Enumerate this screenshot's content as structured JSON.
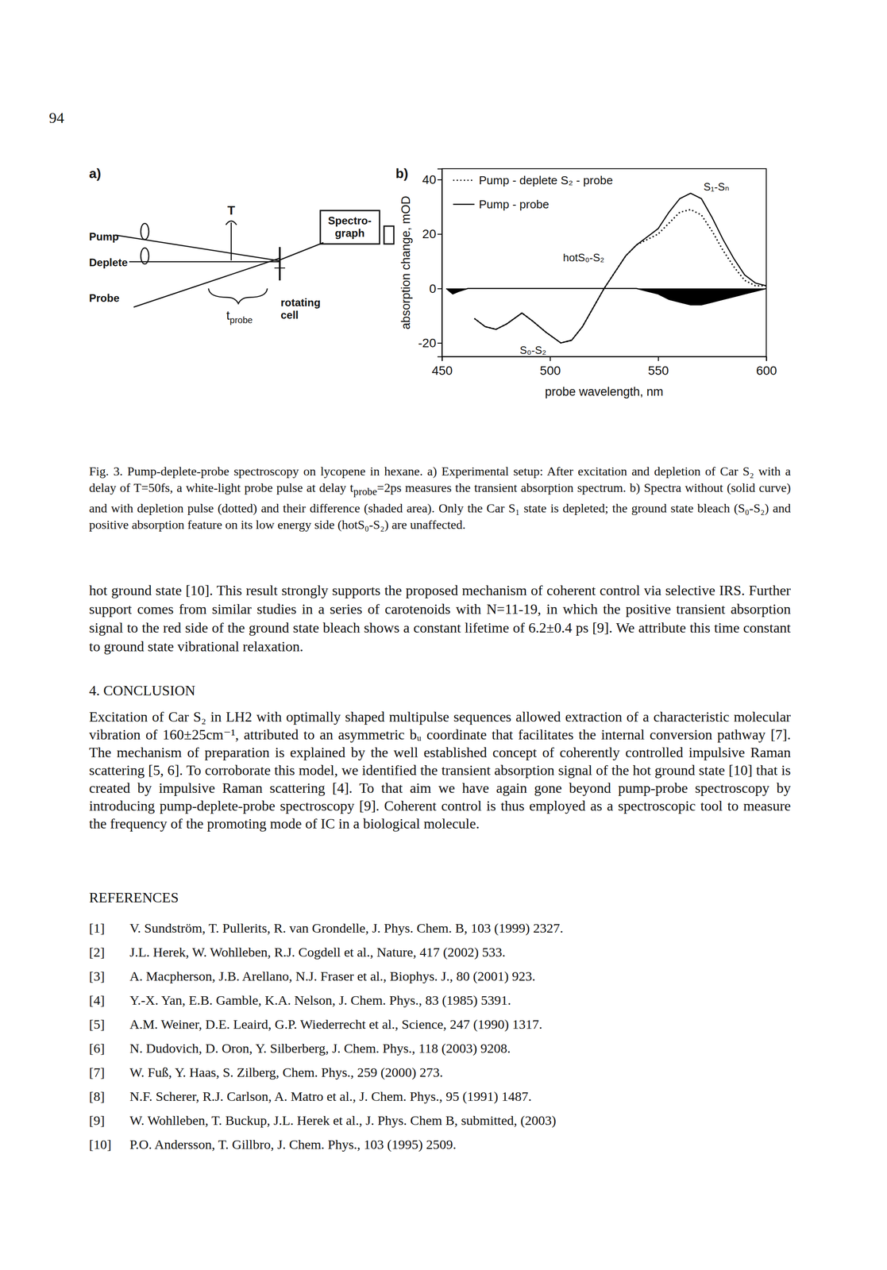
{
  "page_number": "94",
  "panel_labels": [
    "a)",
    "b)"
  ],
  "figure_a": {
    "pump": "Pump",
    "deplete": "Deplete",
    "probe": "Probe",
    "delay": "T",
    "t_probe": {
      "base": "t",
      "sub": "probe"
    },
    "cell": [
      "rotating",
      "cell"
    ],
    "spectrograph": [
      "Spectro-",
      "graph"
    ]
  },
  "chart_data": {
    "type": "line",
    "xlabel": "probe wavelength, nm",
    "ylabel": "absorption change, mOD",
    "xlim": [
      450,
      600
    ],
    "xticks": [
      450,
      500,
      550,
      600
    ],
    "ylim": [
      -25,
      44
    ],
    "yticks": [
      -20,
      0,
      20,
      40
    ],
    "legend": "upper left",
    "series": [
      {
        "name": "Pump - deplete S₂ - probe",
        "type": "line",
        "line_style": "dotted",
        "color": "#000000",
        "x": [
          465,
          470,
          475,
          480,
          487,
          492,
          498,
          505,
          510,
          515,
          520,
          525,
          530,
          535,
          540,
          545,
          550,
          555,
          560,
          565,
          570,
          575,
          580,
          585,
          590,
          595,
          600
        ],
        "values": [
          -11,
          -14,
          -15,
          -13,
          -9,
          -12,
          -16,
          -20,
          -19,
          -14,
          -7,
          0,
          6,
          12,
          16,
          18,
          20,
          24,
          28,
          29,
          27,
          21,
          14,
          8,
          3,
          1,
          1
        ]
      },
      {
        "name": "Pump - probe",
        "type": "line",
        "line_style": "solid",
        "color": "#000000",
        "x": [
          465,
          470,
          475,
          480,
          487,
          492,
          498,
          505,
          510,
          515,
          520,
          525,
          530,
          535,
          540,
          545,
          550,
          555,
          560,
          565,
          570,
          575,
          580,
          585,
          590,
          595,
          600
        ],
        "values": [
          -11,
          -14,
          -15,
          -13,
          -9,
          -12,
          -16,
          -20,
          -19,
          -14,
          -7,
          0,
          6,
          12,
          16,
          19,
          22,
          28,
          33,
          35,
          33,
          26,
          18,
          11,
          5,
          2,
          1
        ]
      },
      {
        "type": "area",
        "color": "#000000",
        "x": [
          452,
          455,
          458,
          462,
          470,
          480,
          490,
          500,
          510,
          520,
          530,
          540,
          545,
          550,
          555,
          560,
          565,
          570,
          575,
          580,
          585,
          590,
          595,
          600
        ],
        "values": [
          0,
          -2,
          -1,
          0,
          0,
          0,
          0,
          0,
          0,
          0,
          0,
          0,
          -1,
          -2,
          -4,
          -5,
          -6,
          -6,
          -5,
          -4,
          -3,
          -2,
          -1,
          0
        ]
      }
    ],
    "annotations": [
      {
        "text": "S₁-Sₙ",
        "x": 571,
        "y": 36
      },
      {
        "text": "hotS₀-S₂",
        "x": 506,
        "y": 10
      },
      {
        "text": "S₀-S₂",
        "x": 486,
        "y": -24
      }
    ]
  },
  "caption": [
    "Fig. 3. Pump-deplete-probe spectroscopy on lycopene in hexane. a) Experimental setup: After excitation and depletion of Car S₂ with a delay of T=50fs, a white-light probe pulse at delay t",
    {
      "sub": "probe"
    },
    "=2ps measures the transient absorption spectrum. b) Spectra without (solid curve) and with depletion pulse (dotted) and their difference (shaded area). Only the Car S₁ state is depleted; the ground state bleach (S₀-S₂) and positive absorption feature on its low energy side (hotS₀-S₂) are unaffected."
  ],
  "body": "hot ground state [10]. This result strongly supports the proposed mechanism of coherent control via selective IRS. Further support comes from similar studies in a series of carotenoids with N=11-19, in which the positive transient absorption signal to the red side of the ground state bleach shows a constant lifetime of 6.2±0.4 ps [9]. We attribute this time constant to ground state vibrational relaxation.",
  "conclusion_heading": "4. CONCLUSION",
  "conclusion": "Excitation of Car S₂ in LH2 with optimally shaped multipulse sequences allowed extraction of a characteristic molecular vibration of 160±25cm⁻¹, attributed to an asymmetric bᵤ coordinate that facilitates the internal conversion pathway [7]. The mechanism of preparation is explained by the well established concept of coherently controlled impulsive Raman scattering [5, 6]. To corroborate this model, we identified the transient absorption signal of the hot ground state [10] that is created by impulsive Raman scattering [4]. To that aim we have again gone beyond pump-probe spectroscopy by introducing pump-deplete-probe spectroscopy [9]. Coherent control is thus employed as a spectroscopic tool to measure the frequency of the promoting mode of IC in a biological molecule.",
  "references_heading": "REFERENCES",
  "references": [
    {
      "label": "[1]",
      "text": "V. Sundström, T. Pullerits, R. van Grondelle, J. Phys. Chem. B, 103 (1999) 2327."
    },
    {
      "label": "[2]",
      "text": "J.L. Herek, W. Wohlleben, R.J. Cogdell et al., Nature, 417 (2002) 533."
    },
    {
      "label": "[3]",
      "text": "A. Macpherson, J.B. Arellano, N.J. Fraser et al., Biophys. J., 80 (2001) 923."
    },
    {
      "label": "[4]",
      "text": "Y.-X. Yan, E.B. Gamble, K.A. Nelson, J. Chem. Phys., 83 (1985) 5391."
    },
    {
      "label": "[5]",
      "text": "A.M. Weiner, D.E. Leaird, G.P. Wiederrecht et al., Science, 247 (1990) 1317."
    },
    {
      "label": "[6]",
      "text": "N. Dudovich, D. Oron, Y. Silberberg, J. Chem. Phys., 118 (2003) 9208."
    },
    {
      "label": "[7]",
      "text": "W. Fuß, Y. Haas, S. Zilberg, Chem. Phys., 259 (2000) 273."
    },
    {
      "label": "[8]",
      "text": "N.F. Scherer, R.J. Carlson, A. Matro et al., J. Chem. Phys., 95 (1991) 1487."
    },
    {
      "label": "[9]",
      "text": "W. Wohlleben, T. Buckup, J.L. Herek et al., J. Phys. Chem B, submitted, (2003)"
    },
    {
      "label": "[10]",
      "text": "P.O. Andersson, T. Gillbro, J. Chem. Phys., 103 (1995) 2509."
    }
  ]
}
